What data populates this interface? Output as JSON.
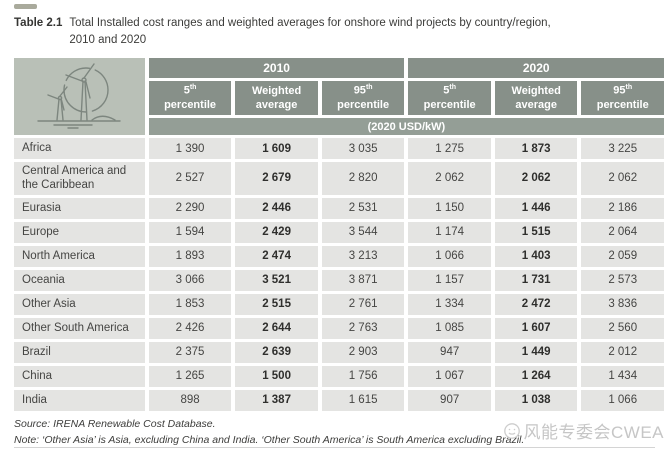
{
  "colors": {
    "header_bg": "#879089",
    "unit_bg": "#949e96",
    "icon_bg": "#b9c0b7",
    "cell_bg": "#e4e4e2",
    "accent_dash": "#a9aa9c",
    "watermark_text": "#c6c6c6"
  },
  "caption": {
    "label": "Table 2.1",
    "text_line1": "Total Installed cost ranges and weighted averages for onshore wind projects by country/region,",
    "text_line2": "2010 and 2020"
  },
  "table": {
    "icon": "wind-turbine-illustration",
    "year_groups": [
      "2010",
      "2020"
    ],
    "col_headers": [
      {
        "num": "5",
        "ord": "th",
        "label": "percentile"
      },
      {
        "line1": "Weighted",
        "line2": "average"
      },
      {
        "num": "95",
        "ord": "th",
        "label": "percentile"
      }
    ],
    "unit_row": "(2020 USD/kW)",
    "rows": [
      {
        "label": "Africa",
        "values": [
          "1 390",
          "1 609",
          "3 035",
          "1 275",
          "1 873",
          "3 225"
        ]
      },
      {
        "label": "Central America and the Caribbean",
        "values": [
          "2 527",
          "2 679",
          "2 820",
          "2 062",
          "2 062",
          "2 062"
        ]
      },
      {
        "label": "Eurasia",
        "values": [
          "2 290",
          "2 446",
          "2 531",
          "1 150",
          "1 446",
          "2 186"
        ]
      },
      {
        "label": "Europe",
        "values": [
          "1 594",
          "2 429",
          "3 544",
          "1 174",
          "1 515",
          "2 064"
        ]
      },
      {
        "label": "North America",
        "values": [
          "1 893",
          "2 474",
          "3 213",
          "1 066",
          "1 403",
          "2 059"
        ]
      },
      {
        "label": "Oceania",
        "values": [
          "3 066",
          "3 521",
          "3 871",
          "1 157",
          "1 731",
          "2 573"
        ]
      },
      {
        "label": "Other Asia",
        "values": [
          "1 853",
          "2 515",
          "2 761",
          "1 334",
          "2 472",
          "3 836"
        ]
      },
      {
        "label": "Other South America",
        "values": [
          "2 426",
          "2 644",
          "2 763",
          "1 085",
          "1 607",
          "2 560"
        ]
      },
      {
        "label": "Brazil",
        "values": [
          "2 375",
          "2 639",
          "2 903",
          "947",
          "1 449",
          "2 012"
        ]
      },
      {
        "label": "China",
        "values": [
          "1 265",
          "1 500",
          "1 756",
          "1 067",
          "1 264",
          "1 434"
        ]
      },
      {
        "label": "India",
        "values": [
          "898",
          "1 387",
          "1 615",
          "907",
          "1 038",
          "1 066"
        ]
      }
    ]
  },
  "footer": {
    "source": "Source: IRENA Renewable Cost Database.",
    "note": "Note: ‘Other Asia’ is Asia, excluding China and India. ‘Other South America’ is South America excluding Brazil."
  },
  "watermark": {
    "text": "风能专委会CWEA"
  }
}
